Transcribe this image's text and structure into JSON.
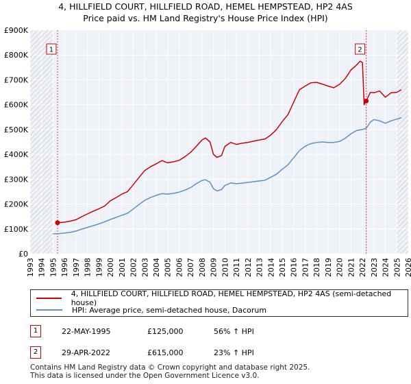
{
  "title_line1": "4, HILLFIELD COURT, HILLFIELD ROAD, HEMEL HEMPSTEAD, HP2 4AS",
  "title_line2": "Price paid vs. HM Land Registry's House Price Index (HPI)",
  "chart_data": {
    "type": "line",
    "x_range": [
      1993,
      2026
    ],
    "ylim": [
      0,
      900000
    ],
    "y_ticks": [
      {
        "value": 0,
        "label": "£0"
      },
      {
        "value": 100000,
        "label": "£100K"
      },
      {
        "value": 200000,
        "label": "£200K"
      },
      {
        "value": 300000,
        "label": "£300K"
      },
      {
        "value": 400000,
        "label": "£400K"
      },
      {
        "value": 500000,
        "label": "£500K"
      },
      {
        "value": 600000,
        "label": "£600K"
      },
      {
        "value": 700000,
        "label": "£700K"
      },
      {
        "value": 800000,
        "label": "£800K"
      },
      {
        "value": 900000,
        "label": "£900K"
      }
    ],
    "x_ticks": [
      "1993",
      "1994",
      "1995",
      "1996",
      "1997",
      "1998",
      "1999",
      "2000",
      "2001",
      "2002",
      "2003",
      "2004",
      "2005",
      "2006",
      "2007",
      "2008",
      "2009",
      "2010",
      "2011",
      "2012",
      "2013",
      "2014",
      "2015",
      "2016",
      "2017",
      "2018",
      "2019",
      "2020",
      "2021",
      "2022",
      "2023",
      "2024",
      "2025",
      "2026"
    ],
    "hatch_before": 1995.0,
    "hatch_after": 2025.0,
    "series": [
      {
        "name": "4, HILLFIELD COURT, HILLFIELD ROAD, HEMEL HEMPSTEAD, HP2 4AS (semi-detached house)",
        "color": "#cc0000",
        "points": [
          [
            1995.39,
            125000
          ],
          [
            1996.0,
            127000
          ],
          [
            1996.5,
            131000
          ],
          [
            1997.0,
            137000
          ],
          [
            1997.5,
            149000
          ],
          [
            1998.0,
            160000
          ],
          [
            1998.5,
            171000
          ],
          [
            1999.0,
            181000
          ],
          [
            1999.5,
            192000
          ],
          [
            2000.0,
            213000
          ],
          [
            2000.5,
            226000
          ],
          [
            2001.0,
            240000
          ],
          [
            2001.5,
            250000
          ],
          [
            2002.0,
            278000
          ],
          [
            2002.5,
            307000
          ],
          [
            2003.0,
            335000
          ],
          [
            2003.5,
            350000
          ],
          [
            2004.0,
            362000
          ],
          [
            2004.5,
            375000
          ],
          [
            2005.0,
            366000
          ],
          [
            2005.5,
            370000
          ],
          [
            2006.0,
            376000
          ],
          [
            2006.5,
            390000
          ],
          [
            2007.0,
            408000
          ],
          [
            2007.5,
            432000
          ],
          [
            2008.0,
            458000
          ],
          [
            2008.3,
            466000
          ],
          [
            2008.7,
            450000
          ],
          [
            2009.0,
            400000
          ],
          [
            2009.3,
            388000
          ],
          [
            2009.7,
            395000
          ],
          [
            2010.0,
            432000
          ],
          [
            2010.5,
            448000
          ],
          [
            2011.0,
            440000
          ],
          [
            2011.5,
            445000
          ],
          [
            2012.0,
            448000
          ],
          [
            2012.5,
            453000
          ],
          [
            2013.0,
            458000
          ],
          [
            2013.5,
            462000
          ],
          [
            2014.0,
            478000
          ],
          [
            2014.5,
            500000
          ],
          [
            2015.0,
            532000
          ],
          [
            2015.5,
            560000
          ],
          [
            2016.0,
            610000
          ],
          [
            2016.5,
            660000
          ],
          [
            2017.0,
            675000
          ],
          [
            2017.5,
            688000
          ],
          [
            2018.0,
            690000
          ],
          [
            2018.5,
            683000
          ],
          [
            2019.0,
            675000
          ],
          [
            2019.5,
            668000
          ],
          [
            2020.0,
            682000
          ],
          [
            2020.5,
            705000
          ],
          [
            2021.0,
            740000
          ],
          [
            2021.5,
            760000
          ],
          [
            2021.8,
            775000
          ],
          [
            2022.0,
            770000
          ],
          [
            2022.15,
            600000
          ],
          [
            2022.33,
            615000
          ],
          [
            2022.7,
            650000
          ],
          [
            2023.0,
            648000
          ],
          [
            2023.5,
            655000
          ],
          [
            2024.0,
            630000
          ],
          [
            2024.5,
            648000
          ],
          [
            2025.0,
            650000
          ],
          [
            2025.4,
            660000
          ]
        ]
      },
      {
        "name": "HPI: Average price, semi-detached house, Dacorum",
        "color": "#5b8fc9",
        "points": [
          [
            1995.0,
            80000
          ],
          [
            1995.5,
            81000
          ],
          [
            1996.0,
            83000
          ],
          [
            1996.5,
            86000
          ],
          [
            1997.0,
            91000
          ],
          [
            1997.5,
            99000
          ],
          [
            1998.0,
            106000
          ],
          [
            1998.5,
            113000
          ],
          [
            1999.0,
            120000
          ],
          [
            1999.5,
            128000
          ],
          [
            2000.0,
            138000
          ],
          [
            2000.5,
            146000
          ],
          [
            2001.0,
            155000
          ],
          [
            2001.5,
            163000
          ],
          [
            2002.0,
            180000
          ],
          [
            2002.5,
            198000
          ],
          [
            2003.0,
            215000
          ],
          [
            2003.5,
            226000
          ],
          [
            2004.0,
            235000
          ],
          [
            2004.5,
            242000
          ],
          [
            2005.0,
            240000
          ],
          [
            2005.5,
            243000
          ],
          [
            2006.0,
            248000
          ],
          [
            2006.5,
            256000
          ],
          [
            2007.0,
            266000
          ],
          [
            2007.5,
            282000
          ],
          [
            2008.0,
            295000
          ],
          [
            2008.3,
            298000
          ],
          [
            2008.7,
            288000
          ],
          [
            2009.0,
            262000
          ],
          [
            2009.3,
            253000
          ],
          [
            2009.7,
            258000
          ],
          [
            2010.0,
            275000
          ],
          [
            2010.5,
            285000
          ],
          [
            2011.0,
            282000
          ],
          [
            2011.5,
            284000
          ],
          [
            2012.0,
            287000
          ],
          [
            2012.5,
            290000
          ],
          [
            2013.0,
            293000
          ],
          [
            2013.5,
            296000
          ],
          [
            2014.0,
            308000
          ],
          [
            2014.5,
            320000
          ],
          [
            2015.0,
            340000
          ],
          [
            2015.5,
            358000
          ],
          [
            2016.0,
            386000
          ],
          [
            2016.5,
            415000
          ],
          [
            2017.0,
            433000
          ],
          [
            2017.5,
            443000
          ],
          [
            2018.0,
            448000
          ],
          [
            2018.5,
            450000
          ],
          [
            2019.0,
            448000
          ],
          [
            2019.5,
            448000
          ],
          [
            2020.0,
            452000
          ],
          [
            2020.5,
            465000
          ],
          [
            2021.0,
            483000
          ],
          [
            2021.5,
            496000
          ],
          [
            2022.0,
            500000
          ],
          [
            2022.33,
            505000
          ],
          [
            2022.7,
            530000
          ],
          [
            2023.0,
            540000
          ],
          [
            2023.5,
            535000
          ],
          [
            2024.0,
            525000
          ],
          [
            2024.5,
            535000
          ],
          [
            2025.0,
            542000
          ],
          [
            2025.4,
            548000
          ]
        ]
      }
    ],
    "annotations": [
      {
        "label": "1",
        "x": 1995.39,
        "value": 125000
      },
      {
        "label": "2",
        "x": 2022.33,
        "value": 615000
      }
    ]
  },
  "legend": {
    "red_label": "4, HILLFIELD COURT, HILLFIELD ROAD, HEMEL HEMPSTEAD, HP2 4AS (semi-detached house)",
    "blue_label": "HPI: Average price, semi-detached house, Dacorum",
    "red_color": "#cc0000",
    "blue_color": "#5b8fc9"
  },
  "sales": [
    {
      "num": "1",
      "date": "22-MAY-1995",
      "price": "£125,000",
      "hpi": "56% ↑ HPI"
    },
    {
      "num": "2",
      "date": "29-APR-2022",
      "price": "£615,000",
      "hpi": "23% ↑ HPI"
    }
  ],
  "footer_line1": "Contains HM Land Registry data © Crown copyright and database right 2025.",
  "footer_line2": "This data is licensed under the Open Government Licence v3.0."
}
